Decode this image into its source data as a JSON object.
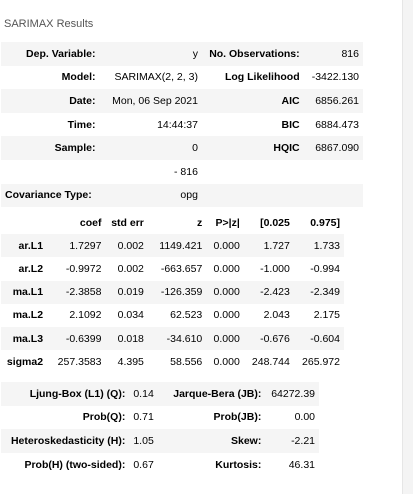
{
  "caption": "SARIMAX Results",
  "summary": {
    "rows": [
      [
        "Dep. Variable:",
        "y",
        "No. Observations:",
        "816"
      ],
      [
        "Model:",
        "SARIMAX(2, 2, 3)",
        "Log Likelihood",
        "-3422.130"
      ],
      [
        "Date:",
        "Mon, 06 Sep 2021",
        "AIC",
        "6856.261"
      ],
      [
        "Time:",
        "14:44:37",
        "BIC",
        "6884.473"
      ],
      [
        "Sample:",
        "0",
        "HQIC",
        "6867.090"
      ],
      [
        "",
        "- 816",
        "",
        ""
      ],
      [
        "Covariance Type:",
        "opg",
        "",
        ""
      ]
    ]
  },
  "coef_table": {
    "headers": [
      "",
      "coef",
      "std err",
      "z",
      "P>|z|",
      "[0.025",
      "0.975]"
    ],
    "rows": [
      [
        "ar.L1",
        "1.7297",
        "0.002",
        "1149.421",
        "0.000",
        "1.727",
        "1.733"
      ],
      [
        "ar.L2",
        "-0.9972",
        "0.002",
        "-663.657",
        "0.000",
        "-1.000",
        "-0.994"
      ],
      [
        "ma.L1",
        "-2.3858",
        "0.019",
        "-126.359",
        "0.000",
        "-2.423",
        "-2.349"
      ],
      [
        "ma.L2",
        "2.1092",
        "0.034",
        "62.523",
        "0.000",
        "2.043",
        "2.175"
      ],
      [
        "ma.L3",
        "-0.6399",
        "0.018",
        "-34.610",
        "0.000",
        "-0.676",
        "-0.604"
      ],
      [
        "sigma2",
        "257.3583",
        "4.395",
        "58.556",
        "0.000",
        "248.744",
        "265.972"
      ]
    ]
  },
  "diagnostics": {
    "rows": [
      [
        "Ljung-Box (L1) (Q):",
        "0.14",
        "Jarque-Bera (JB):",
        "64272.39"
      ],
      [
        "Prob(Q):",
        "0.71",
        "Prob(JB):",
        "0.00"
      ],
      [
        "Heteroskedasticity (H):",
        "1.05",
        "Skew:",
        "-2.21"
      ],
      [
        "Prob(H) (two-sided):",
        "0.67",
        "Kurtosis:",
        "46.31"
      ]
    ]
  }
}
